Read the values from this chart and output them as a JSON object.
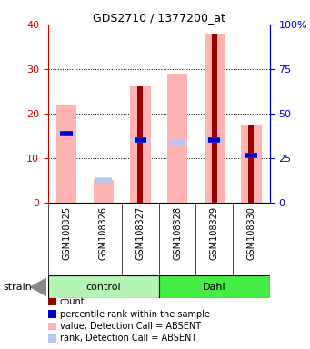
{
  "title": "GDS2710 / 1377200_at",
  "samples": [
    "GSM108325",
    "GSM108326",
    "GSM108327",
    "GSM108328",
    "GSM108329",
    "GSM108330"
  ],
  "ylim_left": [
    0,
    40
  ],
  "ylim_right": [
    0,
    100
  ],
  "yticks_left": [
    0,
    10,
    20,
    30,
    40
  ],
  "yticks_right": [
    0,
    25,
    50,
    75,
    100
  ],
  "ytick_labels_right": [
    "0",
    "25",
    "50",
    "75",
    "100%"
  ],
  "pink_bar_heights": [
    22,
    5,
    26,
    29,
    38,
    17.5
  ],
  "light_blue_marks": [
    15.5,
    5,
    14,
    13.5,
    14,
    10.5
  ],
  "dark_red_bar_heights": [
    0,
    0,
    26,
    0,
    38,
    17.5
  ],
  "blue_marks": [
    15.5,
    0,
    14,
    0,
    14,
    10.5
  ],
  "pink_color": "#ffb3b3",
  "light_blue_color": "#b3c8f5",
  "dark_red_color": "#990000",
  "blue_color": "#0000cc",
  "left_tick_color": "#cc0000",
  "right_tick_color": "#0000cc",
  "legend_items": [
    {
      "label": "count",
      "color": "#990000"
    },
    {
      "label": "percentile rank within the sample",
      "color": "#0000cc"
    },
    {
      "label": "value, Detection Call = ABSENT",
      "color": "#ffb3b3"
    },
    {
      "label": "rank, Detection Call = ABSENT",
      "color": "#b3c8f5"
    }
  ],
  "control_color": "#b3f5b3",
  "dahl_color": "#44ee44",
  "sample_box_color": "#d0d0d0"
}
